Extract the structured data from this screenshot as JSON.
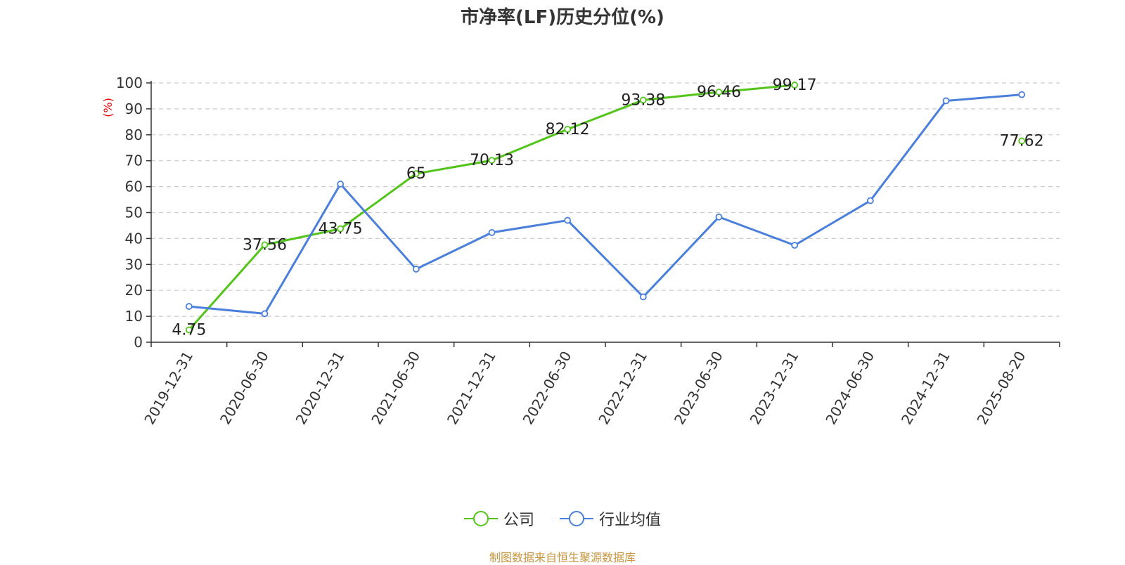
{
  "chart_data": {
    "type": "line",
    "title": "市净率(LF)历史分位(%)",
    "ylabel": "(%)",
    "xlabel": "",
    "ylim": [
      0,
      100
    ],
    "yticks": [
      0,
      10,
      20,
      30,
      40,
      50,
      60,
      70,
      80,
      90,
      100
    ],
    "grid": true,
    "legend_position": "bottom",
    "categories": [
      "2019-12-31",
      "2020-06-30",
      "2020-12-31",
      "2021-06-30",
      "2021-12-31",
      "2022-06-30",
      "2022-12-31",
      "2023-06-30",
      "2023-12-31",
      "2024-06-30",
      "2024-12-31",
      "2025-08-20"
    ],
    "series": [
      {
        "name": "公司",
        "color": "#52c41a",
        "values": [
          4.75,
          37.56,
          43.75,
          65,
          70.13,
          82.12,
          93.38,
          96.46,
          99.17,
          null,
          null,
          77.62
        ],
        "labels": [
          "4.75",
          "37.56",
          "43.75",
          "65",
          "70.13",
          "82.12",
          "93.38",
          "96.46",
          "99.17",
          null,
          null,
          "77.62"
        ]
      },
      {
        "name": "行业均值",
        "color": "#4a7fdb",
        "values": [
          13.8,
          11.0,
          61.0,
          28.2,
          42.3,
          47.0,
          17.5,
          48.3,
          37.4,
          54.6,
          93.1,
          95.5
        ]
      }
    ]
  },
  "footer": {
    "source": "制图数据来自恒生聚源数据库",
    "source_color": "#c8963e"
  }
}
